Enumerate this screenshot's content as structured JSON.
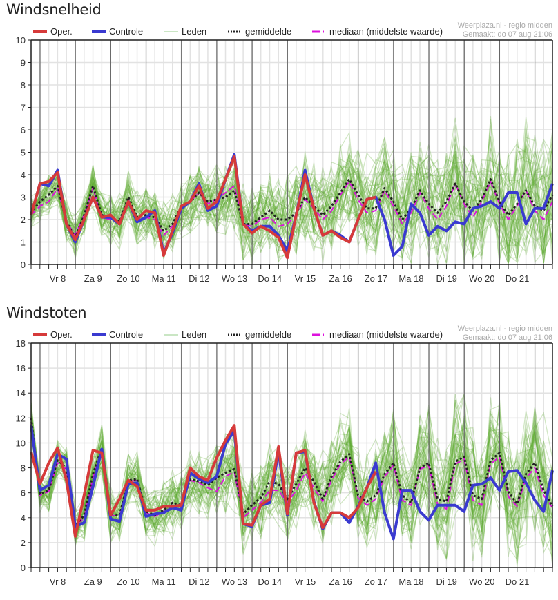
{
  "legend": {
    "oper": "Oper.",
    "controle": "Controle",
    "leden": "Leden",
    "gemiddelde": "gemiddelde",
    "mediaan": "mediaan (middelste waarde)"
  },
  "credit": {
    "source": "Weerplaza.nl - regio midden",
    "made": "Gemaakt: do 07 aug 21:06"
  },
  "colors": {
    "oper": "#d63a3a",
    "controle": "#3a3ad0",
    "leden": "#5aaa2a",
    "gemiddelde": "#222222",
    "mediaan": "#dd11dd",
    "grid": "#e2e2e2",
    "dayline": "#666666"
  },
  "chart_data": [
    {
      "type": "line",
      "title": "Windsnelheid",
      "xlabel": "",
      "ylabel": "",
      "ylim": [
        0,
        10
      ],
      "yticks": [
        0,
        1,
        2,
        3,
        4,
        5,
        6,
        7,
        8,
        9,
        10
      ],
      "x_step_hours": 6,
      "day_labels": [
        "Vr 8",
        "Za 9",
        "Zo 10",
        "Ma 11",
        "Di 12",
        "Wo 13",
        "Do 14",
        "Vr 15",
        "Za 16",
        "Zo 17",
        "Ma 18",
        "Di 19",
        "Wo 20",
        "Do 21"
      ],
      "grid": true,
      "legend_position": "top",
      "series": [
        {
          "name": "Oper.",
          "values": [
            2.2,
            3.6,
            3.7,
            4.1,
            1.8,
            1.1,
            2.0,
            3.0,
            2.1,
            2.2,
            1.8,
            2.8,
            2.0,
            2.4,
            2.3,
            0.4,
            1.5,
            2.6,
            2.8,
            3.5,
            2.5,
            2.8,
            3.8,
            4.8,
            1.8,
            1.4,
            1.7,
            1.5,
            1.2,
            0.3,
            2.2,
            4.0,
            2.5,
            1.3,
            1.5,
            1.2,
            1.0,
            2.0,
            2.9,
            3.0
          ]
        },
        {
          "name": "Controle",
          "values": [
            2.2,
            3.6,
            3.5,
            4.2,
            1.8,
            1.0,
            2.0,
            3.0,
            2.1,
            2.1,
            1.8,
            2.8,
            1.9,
            2.1,
            2.4,
            0.5,
            1.4,
            2.5,
            2.8,
            3.6,
            2.4,
            2.6,
            3.8,
            4.9,
            1.8,
            1.5,
            1.7,
            1.7,
            1.3,
            0.6,
            2.2,
            4.2,
            2.5,
            1.3,
            1.5,
            1.3,
            1.0,
            2.0,
            2.9,
            3.0,
            2.0,
            0.4,
            0.8,
            2.7,
            2.3,
            1.3,
            1.7,
            1.5,
            1.9,
            1.8,
            2.5,
            2.6,
            2.8,
            2.5,
            3.2,
            3.2,
            1.8,
            2.5,
            2.5,
            3.6
          ]
        },
        {
          "name": "gemiddelde",
          "values": [
            2.3,
            2.8,
            3.1,
            3.5,
            1.9,
            1.2,
            2.2,
            3.5,
            2.2,
            2.1,
            1.9,
            3.0,
            2.1,
            2.2,
            2.1,
            1.5,
            1.8,
            2.6,
            2.8,
            3.2,
            2.8,
            2.9,
            3.0,
            3.3,
            1.8,
            1.8,
            2.1,
            2.4,
            2.0,
            2.0,
            2.3,
            3.0,
            2.6,
            2.2,
            2.6,
            3.2,
            3.8,
            3.1,
            2.5,
            2.5,
            3.4,
            2.8,
            2.0,
            2.5,
            3.3,
            2.7,
            2.3,
            2.8,
            3.6,
            2.8,
            2.4,
            2.9,
            3.8,
            2.8,
            2.2,
            2.7,
            3.3,
            2.6,
            2.4,
            3.1
          ]
        },
        {
          "name": "mediaan (middelste waarde)",
          "values": [
            2.2,
            2.6,
            2.8,
            3.4,
            1.9,
            1.3,
            2.2,
            3.4,
            2.1,
            2.0,
            1.9,
            2.9,
            2.0,
            2.1,
            2.0,
            1.3,
            1.7,
            2.5,
            2.8,
            3.2,
            2.7,
            2.9,
            3.2,
            3.5,
            1.8,
            1.7,
            2.0,
            2.1,
            1.7,
            1.8,
            2.2,
            2.9,
            2.5,
            2.0,
            2.4,
            3.1,
            3.7,
            2.9,
            2.3,
            2.4,
            3.3,
            2.6,
            1.8,
            2.3,
            3.2,
            2.5,
            2.0,
            2.6,
            3.6,
            2.7,
            2.1,
            2.8,
            3.7,
            2.7,
            2.0,
            2.6,
            3.3,
            2.4,
            2.0,
            2.8
          ]
        }
      ],
      "members_note": "Leden (ensemble members) rendered as ~50 semi-transparent green lines spread around the mean"
    },
    {
      "type": "line",
      "title": "Windstoten",
      "xlabel": "",
      "ylabel": "",
      "ylim": [
        0,
        18
      ],
      "yticks": [
        0,
        2,
        4,
        6,
        8,
        10,
        12,
        14,
        16,
        18
      ],
      "x_step_hours": 6,
      "day_labels": [
        "Vr 8",
        "Za 9",
        "Zo 10",
        "Ma 11",
        "Di 12",
        "Wo 13",
        "Do 14",
        "Vr 15",
        "Za 16",
        "Zo 17",
        "Ma 18",
        "Di 19",
        "Wo 20",
        "Do 21"
      ],
      "grid": true,
      "legend_position": "top",
      "series": [
        {
          "name": "Oper.",
          "values": [
            9.3,
            6.7,
            8.4,
            9.6,
            7.0,
            2.5,
            5.8,
            9.4,
            9.2,
            4.2,
            5.5,
            7.0,
            6.5,
            4.6,
            4.6,
            4.9,
            4.9,
            5.0,
            8.0,
            7.3,
            7.0,
            8.8,
            10.2,
            11.4,
            3.5,
            3.4,
            5.0,
            5.5,
            9.7,
            4.3,
            9.2,
            9.4,
            5.2,
            3.2,
            4.4,
            4.4,
            4.0,
            4.8,
            6.4,
            7.7
          ]
        },
        {
          "name": "Controle",
          "values": [
            11.4,
            6.2,
            6.6,
            9.1,
            8.7,
            3.3,
            3.6,
            6.5,
            9.5,
            3.9,
            3.7,
            6.7,
            6.8,
            4.1,
            4.3,
            4.4,
            4.8,
            4.6,
            7.6,
            7.1,
            6.8,
            7.3,
            9.9,
            11.0,
            3.5,
            3.3,
            5.0,
            5.2,
            9.3,
            4.2,
            9.2,
            9.3,
            5.3,
            3.1,
            4.4,
            4.4,
            3.6,
            4.9,
            6.4,
            8.4,
            4.4,
            2.3,
            6.2,
            6.2,
            4.5,
            3.8,
            5.0,
            5.0,
            5.0,
            4.5,
            6.6,
            6.7,
            7.2,
            6.2,
            7.7,
            7.8,
            6.8,
            5.4,
            4.5,
            7.8
          ]
        },
        {
          "name": "gemiddelde",
          "values": [
            12.0,
            5.9,
            6.2,
            8.6,
            8.0,
            3.3,
            4.2,
            7.5,
            9.6,
            4.3,
            4.2,
            7.0,
            7.1,
            4.5,
            4.2,
            4.6,
            5.2,
            5.0,
            7.1,
            6.9,
            6.6,
            7.2,
            7.6,
            7.9,
            4.3,
            5.0,
            5.6,
            6.9,
            6.7,
            5.5,
            6.7,
            8.0,
            6.9,
            5.5,
            7.3,
            8.5,
            9.1,
            5.8,
            5.3,
            5.8,
            7.5,
            8.4,
            5.8,
            5.2,
            8.0,
            8.4,
            5.5,
            5.3,
            8.5,
            8.9,
            5.8,
            5.5,
            8.6,
            9.2,
            6.1,
            5.1,
            7.5,
            8.4,
            6.2,
            4.9
          ]
        },
        {
          "name": "mediaan (middelste waarde)",
          "values": [
            11.5,
            5.8,
            6.1,
            8.4,
            7.9,
            3.3,
            4.0,
            7.2,
            9.5,
            4.2,
            4.1,
            6.9,
            7.0,
            4.4,
            4.1,
            4.5,
            5.0,
            4.9,
            7.0,
            6.8,
            6.4,
            6.1,
            7.3,
            7.7,
            4.0,
            4.6,
            5.2,
            6.2,
            6.2,
            5.2,
            6.2,
            7.6,
            6.4,
            5.3,
            7.0,
            8.3,
            8.9,
            5.6,
            5.0,
            5.5,
            7.3,
            8.2,
            5.4,
            5.0,
            7.9,
            8.2,
            5.1,
            4.7,
            8.3,
            8.7,
            5.4,
            5.0,
            8.3,
            8.9,
            5.7,
            4.9,
            7.2,
            8.0,
            5.8,
            4.8
          ]
        }
      ],
      "members_note": "Leden (ensemble members) rendered as ~50 semi-transparent green lines spread around the mean"
    }
  ]
}
